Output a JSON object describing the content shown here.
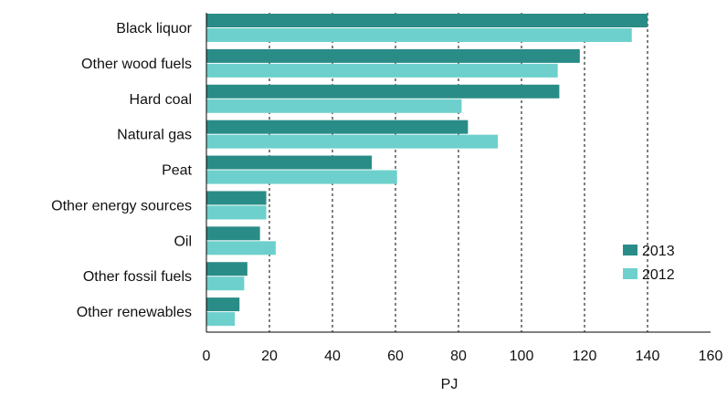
{
  "chart_data": {
    "type": "bar",
    "orientation": "horizontal",
    "title": "",
    "xlabel": "PJ",
    "ylabel": "",
    "xlim": [
      0,
      160
    ],
    "x_ticks": [
      "0",
      "20",
      "40",
      "60",
      "80",
      "100",
      "120",
      "140",
      "160"
    ],
    "grid": "vertical dashed",
    "legend_position": "bottom-right",
    "categories": [
      "Black liquor",
      "Other wood fuels",
      "Hard coal",
      "Natural gas",
      "Peat",
      "Other energy sources",
      "Oil",
      "Other fossil fuels",
      "Other renewables"
    ],
    "series": [
      {
        "name": "2013",
        "color": "#2A8C87",
        "values": [
          140,
          118.5,
          112,
          83,
          52.5,
          19,
          17,
          13,
          10.5
        ]
      },
      {
        "name": "2012",
        "color": "#6DD0CC",
        "values": [
          135,
          111.5,
          81,
          92.5,
          60.5,
          19,
          22,
          12,
          9
        ]
      }
    ]
  }
}
